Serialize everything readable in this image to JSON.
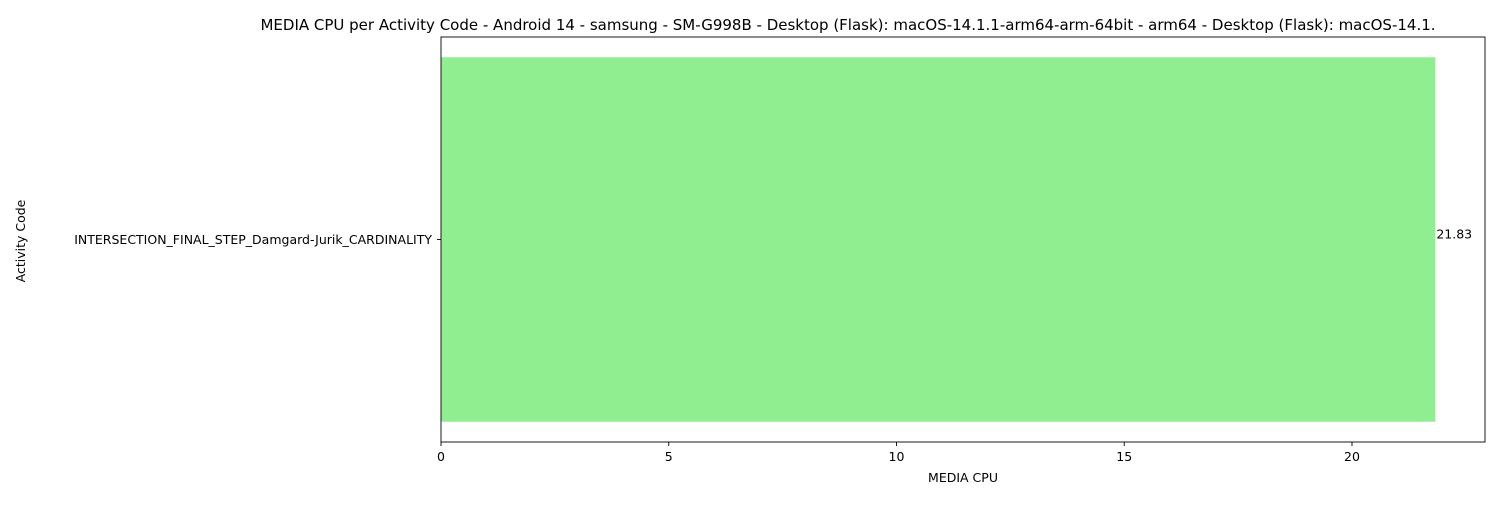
{
  "chart_data": {
    "type": "bar",
    "orientation": "horizontal",
    "title": "MEDIA CPU per Activity Code - Android 14 - samsung - SM-G998B - Desktop (Flask): macOS-14.1.1-arm64-arm-64bit - arm64 - Desktop (Flask): macOS-14.1.",
    "xlabel": "MEDIA CPU",
    "ylabel": "Activity Code",
    "categories": [
      "INTERSECTION_FINAL_STEP_Damgard-Jurik_CARDINALITY"
    ],
    "values": [
      21.83
    ],
    "data_labels": [
      "21.83"
    ],
    "xlim": [
      0,
      22.92
    ],
    "xticks": [
      0,
      5,
      10,
      15,
      20
    ],
    "xtick_labels": [
      "0",
      "5",
      "10",
      "15",
      "20"
    ],
    "bar_color": "#90ee90",
    "grid": false,
    "legend": "none"
  }
}
